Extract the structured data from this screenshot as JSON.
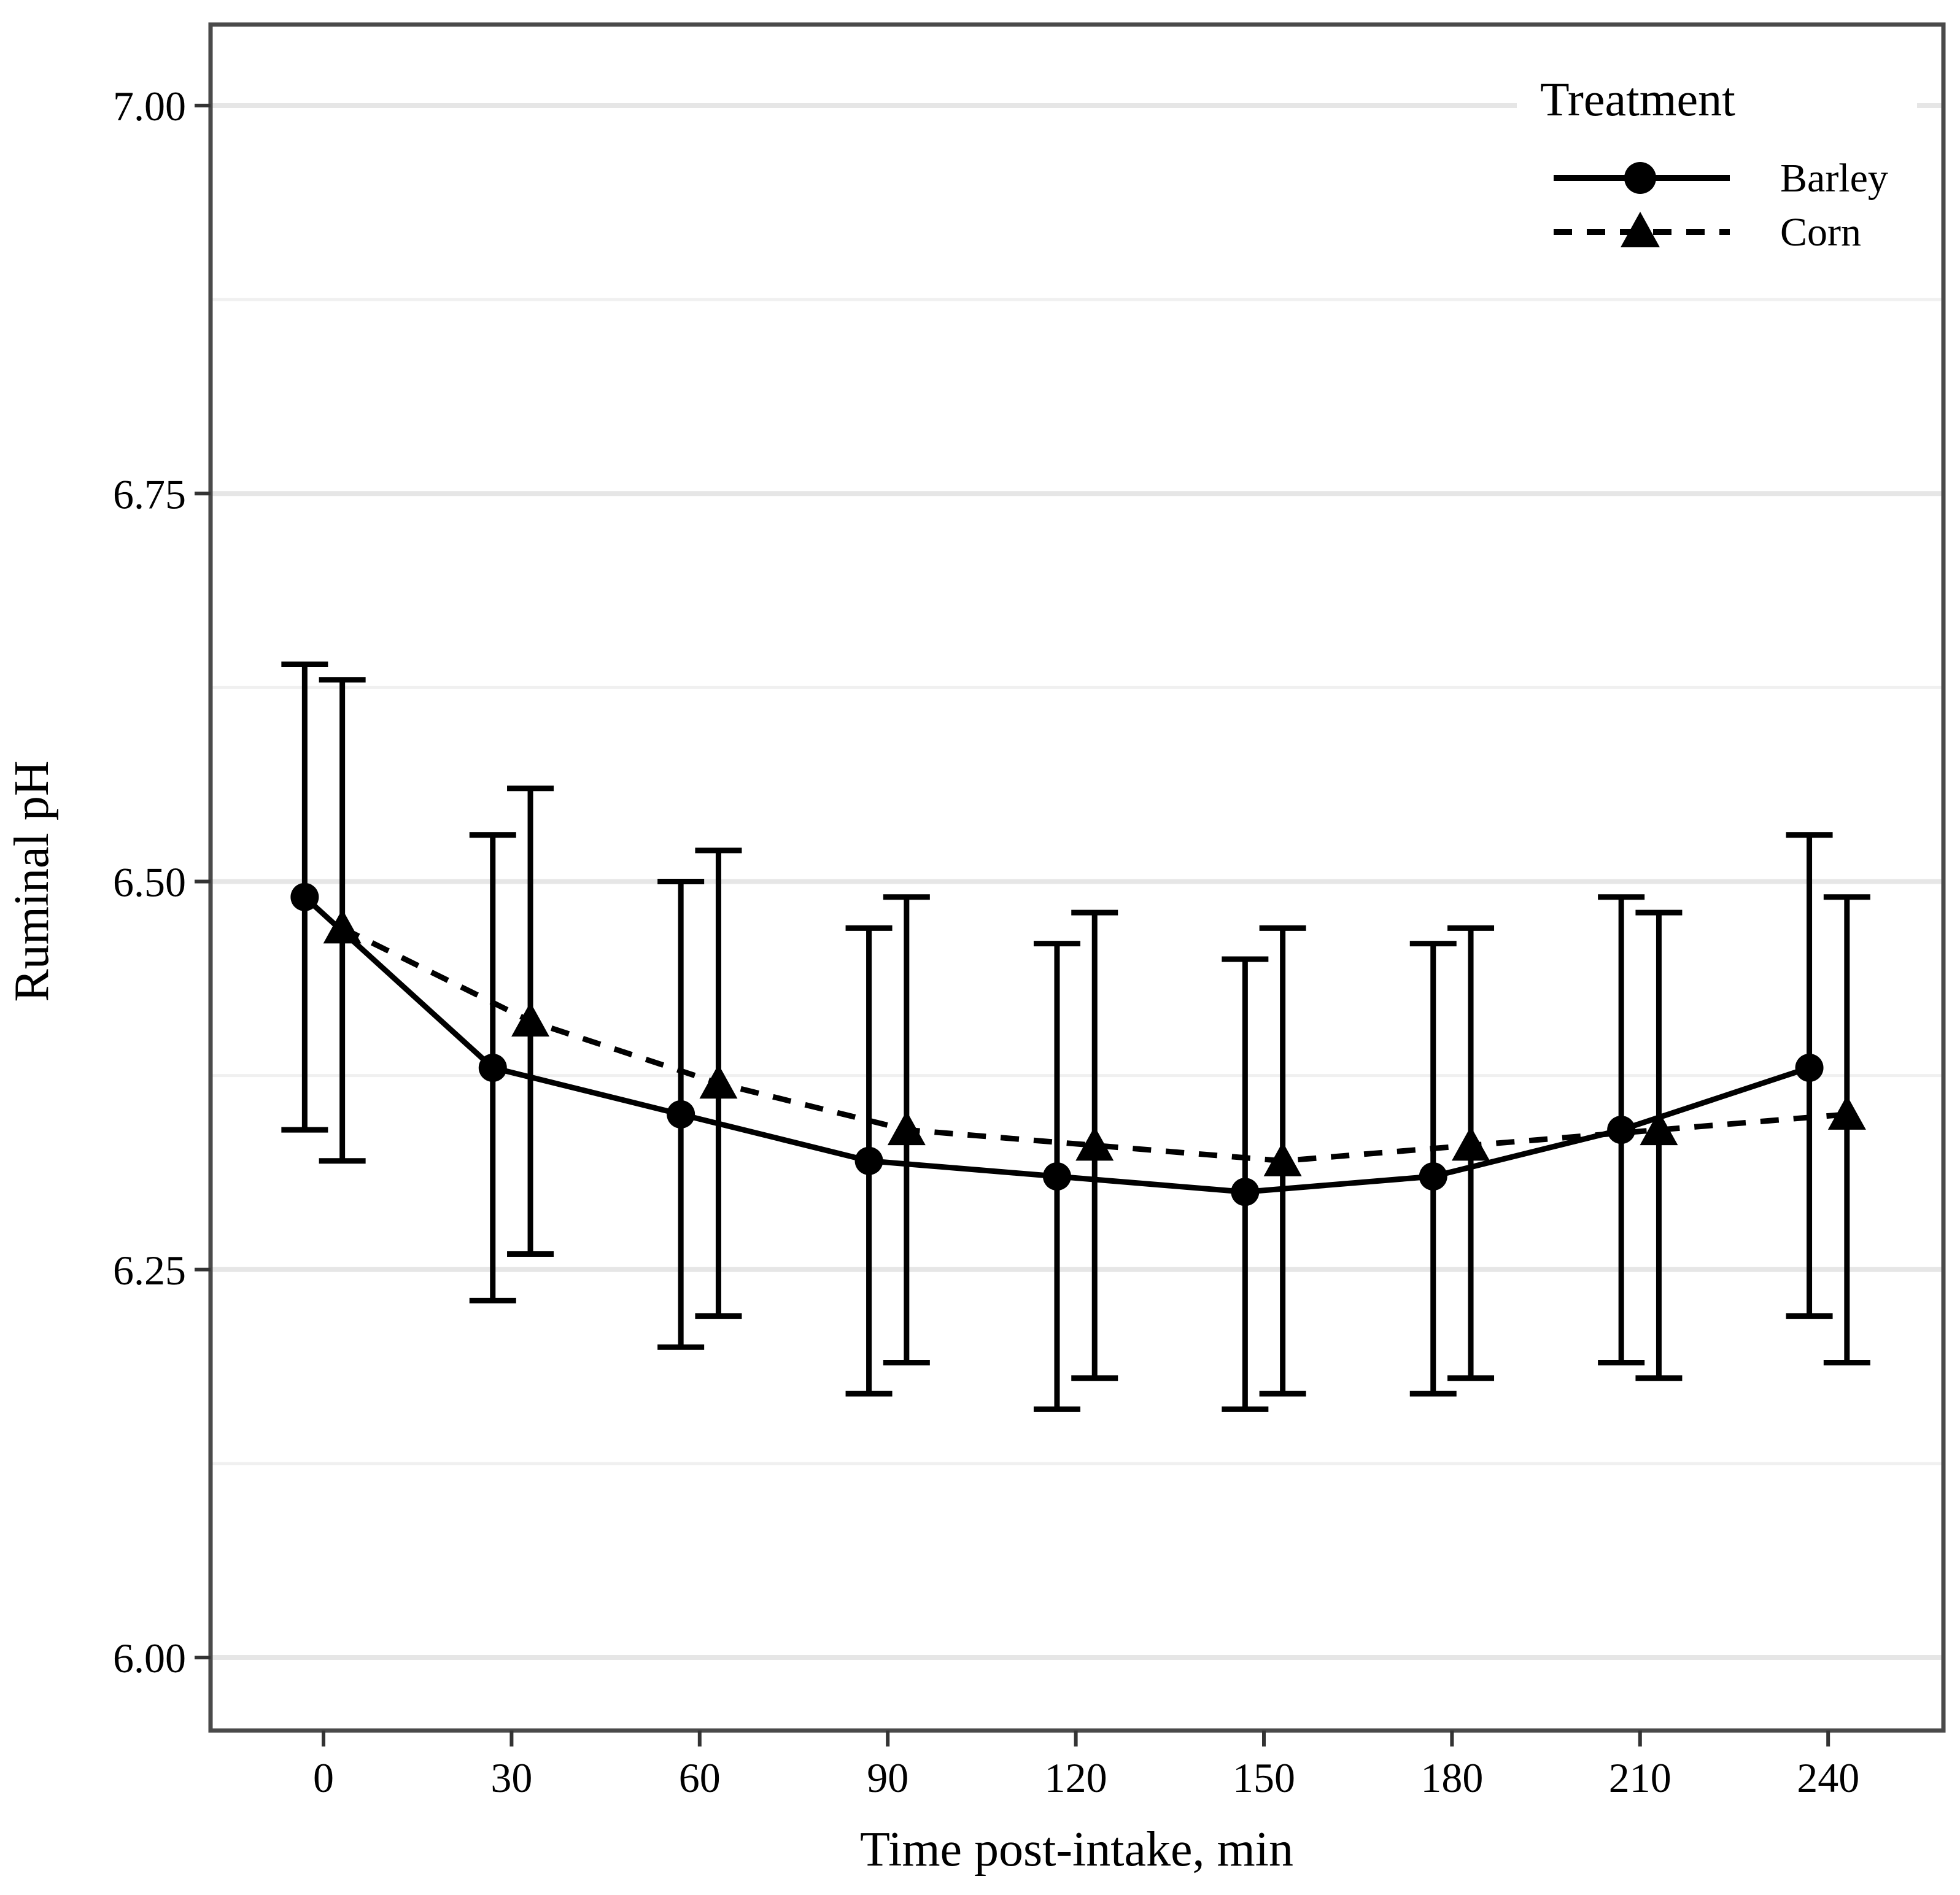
{
  "figure": {
    "y_axis_title": "Ruminal pH",
    "x_axis_title": "Time post-intake, min",
    "y_tick_labels": [
      "7.00",
      "6.75",
      "6.50",
      "6.25",
      "6.00"
    ],
    "x_tick_labels": [
      "0",
      "30",
      "60",
      "90",
      "120",
      "150",
      "180",
      "210",
      "240"
    ]
  },
  "legend": {
    "title": "Treatment",
    "items": [
      {
        "label": "Barley",
        "marker": "circle",
        "line": "solid"
      },
      {
        "label": "Corn",
        "marker": "triangle",
        "line": "dashed"
      }
    ]
  },
  "colors": {
    "series": "#000000",
    "grid_major": "#e6e6e6",
    "grid_minor": "#f0f0f0",
    "panel_border": "#4a4a4a",
    "tick": "#333333",
    "background": "#ffffff"
  },
  "chart_data": {
    "type": "line",
    "title": "",
    "xlabel": "Time post-intake, min",
    "ylabel": "Ruminal pH",
    "x": [
      0,
      30,
      60,
      90,
      120,
      150,
      180,
      210,
      240
    ],
    "xlim": [
      -18,
      258
    ],
    "ylim": [
      5.94,
      7.06
    ],
    "y_major_ticks": [
      7.0,
      6.75,
      6.5,
      6.25,
      6.0
    ],
    "y_minor_ticks": [
      6.875,
      6.625,
      6.375,
      6.125
    ],
    "grid": true,
    "legend_position": "top-right-inside",
    "error_bars": true,
    "series": [
      {
        "name": "Barley",
        "marker": "circle",
        "linestyle": "solid",
        "dodge_min": -3,
        "values": [
          6.49,
          6.38,
          6.35,
          6.32,
          6.31,
          6.3,
          6.31,
          6.34,
          6.38
        ],
        "lower": [
          6.34,
          6.23,
          6.2,
          6.17,
          6.16,
          6.16,
          6.17,
          6.19,
          6.22
        ],
        "upper": [
          6.64,
          6.53,
          6.5,
          6.47,
          6.46,
          6.45,
          6.46,
          6.49,
          6.53
        ]
      },
      {
        "name": "Corn",
        "marker": "triangle",
        "linestyle": "dashed",
        "dodge_min": 3,
        "values": [
          6.47,
          6.41,
          6.37,
          6.34,
          6.33,
          6.32,
          6.33,
          6.34,
          6.35
        ],
        "lower": [
          6.32,
          6.26,
          6.22,
          6.19,
          6.18,
          6.17,
          6.18,
          6.18,
          6.19
        ],
        "upper": [
          6.63,
          6.56,
          6.52,
          6.49,
          6.48,
          6.47,
          6.47,
          6.48,
          6.49
        ]
      }
    ]
  }
}
